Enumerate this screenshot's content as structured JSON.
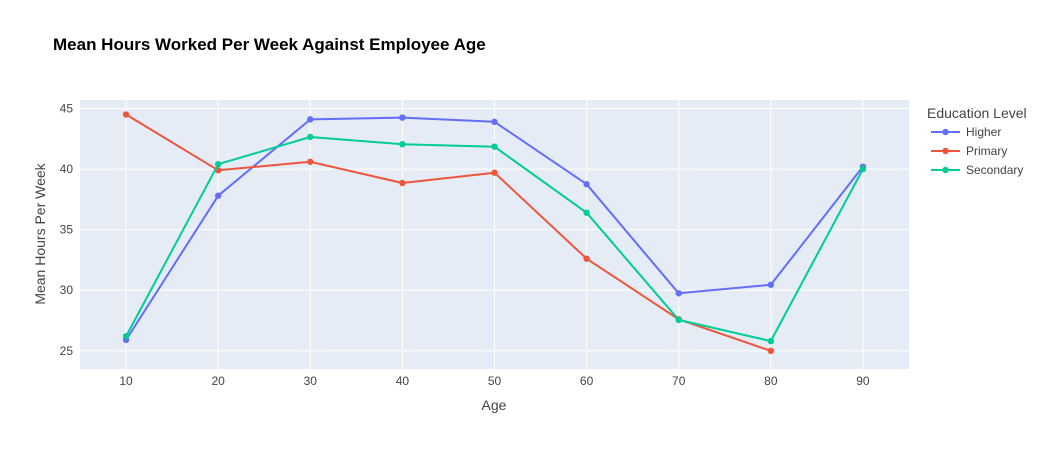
{
  "chart_data": {
    "type": "line",
    "title": "Mean Hours Worked Per Week Against Employee Age",
    "xlabel": "Age",
    "ylabel": "Mean Hours Per Week",
    "xlim": [
      5,
      95
    ],
    "ylim": [
      23.5,
      45.7
    ],
    "x_ticks": [
      10,
      20,
      30,
      40,
      50,
      60,
      70,
      80,
      90
    ],
    "y_ticks": [
      25,
      30,
      35,
      40,
      45
    ],
    "grid": true,
    "legend": {
      "title": "Education Level",
      "placement": "top-right"
    },
    "colors": {
      "plot_background": "#e5ecf6",
      "grid": "#ffffff"
    },
    "series": [
      {
        "name": "Higher",
        "color": "#636efa",
        "points": [
          [
            10,
            25.9
          ],
          [
            20,
            37.8
          ],
          [
            30,
            44.1
          ],
          [
            40,
            44.25
          ],
          [
            50,
            43.9
          ],
          [
            60,
            38.75
          ],
          [
            70,
            29.75
          ],
          [
            80,
            30.45
          ],
          [
            90,
            40.2
          ]
        ]
      },
      {
        "name": "Primary",
        "color": "#ef553b",
        "points": [
          [
            10,
            44.5
          ],
          [
            20,
            39.9
          ],
          [
            30,
            40.6
          ],
          [
            40,
            38.85
          ],
          [
            50,
            39.7
          ],
          [
            60,
            32.6
          ],
          [
            70,
            27.6
          ],
          [
            80,
            25.0
          ]
        ]
      },
      {
        "name": "Secondary",
        "color": "#00cc96",
        "points": [
          [
            10,
            26.2
          ],
          [
            20,
            40.4
          ],
          [
            30,
            42.65
          ],
          [
            40,
            42.05
          ],
          [
            50,
            41.85
          ],
          [
            60,
            36.4
          ],
          [
            70,
            27.55
          ],
          [
            80,
            25.8
          ],
          [
            90,
            40.0
          ]
        ]
      }
    ]
  }
}
